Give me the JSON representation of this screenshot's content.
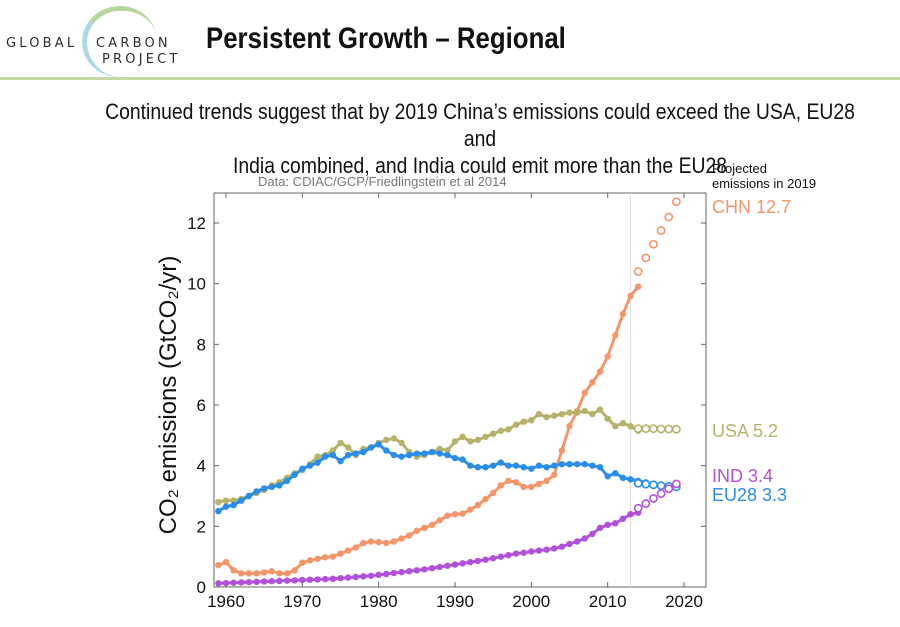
{
  "header": {
    "logo": {
      "line1a": "GLOBAL",
      "line1b": "CARBON",
      "line2": "PROJECT"
    },
    "title": "Persistent Growth – Regional",
    "subtitle_line1": "Continued trends suggest that by 2019 China’s emissions could exceed the USA, EU28 and",
    "subtitle_line2": "India combined, and India could emit more than the EU28"
  },
  "chart_data": {
    "type": "line",
    "title": "",
    "source_note": "Data: CDIAC/GCP/Friedlingstein et al 2014",
    "xlabel": "",
    "ylabel": "CO₂ emissions (GtCO₂/yr)",
    "xlim": [
      1958,
      2022
    ],
    "ylim": [
      0,
      13
    ],
    "xticks": [
      1960,
      1970,
      1980,
      1990,
      2000,
      2010,
      2020
    ],
    "yticks": [
      0,
      2,
      4,
      6,
      8,
      10,
      12
    ],
    "projection_start_year": 2013,
    "projection_header": [
      "Projected",
      "emissions in 2019"
    ],
    "grid": false,
    "series": [
      {
        "name": "CHN",
        "label": "CHN 12.7",
        "color": "#f4956a",
        "x_start": 1959,
        "values": [
          0.72,
          0.82,
          0.55,
          0.45,
          0.45,
          0.45,
          0.48,
          0.52,
          0.45,
          0.45,
          0.55,
          0.8,
          0.88,
          0.93,
          0.98,
          1.0,
          1.1,
          1.2,
          1.3,
          1.45,
          1.5,
          1.48,
          1.45,
          1.5,
          1.6,
          1.7,
          1.85,
          1.95,
          2.05,
          2.2,
          2.35,
          2.4,
          2.42,
          2.55,
          2.7,
          2.9,
          3.1,
          3.35,
          3.5,
          3.45,
          3.3,
          3.3,
          3.4,
          3.5,
          3.7,
          4.5,
          5.3,
          5.8,
          6.4,
          6.75,
          7.1,
          7.6,
          8.3,
          9.0,
          9.6,
          9.9
        ],
        "projected_x_start": 2014,
        "projected": [
          10.4,
          10.85,
          11.3,
          11.75,
          12.2,
          12.7
        ]
      },
      {
        "name": "USA",
        "label": "USA 5.2",
        "color": "#b5b36a",
        "x_start": 1959,
        "values": [
          2.8,
          2.85,
          2.85,
          2.9,
          3.0,
          3.1,
          3.2,
          3.35,
          3.45,
          3.6,
          3.75,
          3.85,
          4.05,
          4.3,
          4.35,
          4.5,
          4.75,
          4.6,
          4.35,
          4.55,
          4.6,
          4.75,
          4.85,
          4.9,
          4.75,
          4.45,
          4.3,
          4.35,
          4.45,
          4.55,
          4.5,
          4.8,
          4.95,
          4.8,
          4.85,
          4.95,
          5.05,
          5.15,
          5.2,
          5.35,
          5.45,
          5.5,
          5.7,
          5.6,
          5.65,
          5.7,
          5.75,
          5.75,
          5.8,
          5.7,
          5.85,
          5.55,
          5.3,
          5.4,
          5.3,
          5.15,
          5.25
        ],
        "projected_x_start": 2014,
        "projected": [
          5.22,
          5.22,
          5.22,
          5.21,
          5.21,
          5.2
        ]
      },
      {
        "name": "EU28",
        "label": "EU28 3.3",
        "color": "#2a8ee8",
        "x_start": 1959,
        "values": [
          2.5,
          2.65,
          2.7,
          2.85,
          3.0,
          3.15,
          3.25,
          3.3,
          3.35,
          3.5,
          3.7,
          3.9,
          4.0,
          4.1,
          4.3,
          4.35,
          4.15,
          4.35,
          4.4,
          4.45,
          4.6,
          4.7,
          4.5,
          4.35,
          4.3,
          4.35,
          4.4,
          4.4,
          4.45,
          4.4,
          4.35,
          4.25,
          4.2,
          4.0,
          3.95,
          3.95,
          4.0,
          4.1,
          4.0,
          4.0,
          3.95,
          3.9,
          4.0,
          3.95,
          4.0,
          4.05,
          4.05,
          4.05,
          4.05,
          4.0,
          3.95,
          3.65,
          3.75,
          3.6,
          3.55,
          3.5,
          3.45
        ],
        "projected_x_start": 2014,
        "projected": [
          3.42,
          3.39,
          3.37,
          3.34,
          3.32,
          3.3
        ]
      },
      {
        "name": "IND",
        "label": "IND 3.4",
        "color": "#b150d8",
        "x_start": 1959,
        "values": [
          0.12,
          0.13,
          0.14,
          0.15,
          0.16,
          0.17,
          0.18,
          0.19,
          0.2,
          0.21,
          0.22,
          0.23,
          0.24,
          0.25,
          0.26,
          0.27,
          0.29,
          0.31,
          0.33,
          0.35,
          0.37,
          0.4,
          0.43,
          0.46,
          0.49,
          0.52,
          0.55,
          0.58,
          0.62,
          0.66,
          0.7,
          0.74,
          0.78,
          0.82,
          0.86,
          0.9,
          0.95,
          1.0,
          1.05,
          1.1,
          1.13,
          1.17,
          1.2,
          1.23,
          1.27,
          1.33,
          1.42,
          1.5,
          1.6,
          1.75,
          1.95,
          2.05,
          2.1,
          2.25,
          2.4,
          2.45
        ],
        "projected_x_start": 2014,
        "projected": [
          2.6,
          2.75,
          2.92,
          3.08,
          3.24,
          3.4
        ]
      }
    ]
  }
}
